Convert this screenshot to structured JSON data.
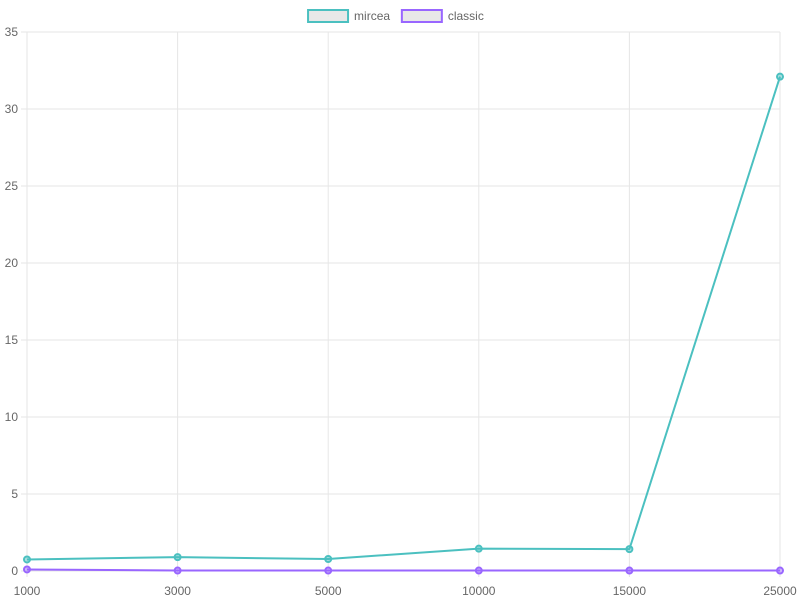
{
  "chart_data": {
    "type": "line",
    "title": "",
    "xlabel": "",
    "ylabel": "",
    "categories": [
      "1000",
      "3000",
      "5000",
      "10000",
      "15000",
      "25000"
    ],
    "ylim": [
      0,
      35
    ],
    "yticks": [
      "0",
      "5",
      "10",
      "15",
      "20",
      "25",
      "30",
      "35"
    ],
    "grid": true,
    "legend_position": "top-center",
    "series": [
      {
        "name": "mircea",
        "color": "#4BC0C0",
        "values": [
          0.75,
          0.9,
          0.78,
          1.45,
          1.42,
          32.1
        ]
      },
      {
        "name": "classic",
        "color": "#9966FF",
        "values": [
          0.1,
          0.03,
          0.03,
          0.03,
          0.03,
          0.03
        ]
      }
    ]
  }
}
